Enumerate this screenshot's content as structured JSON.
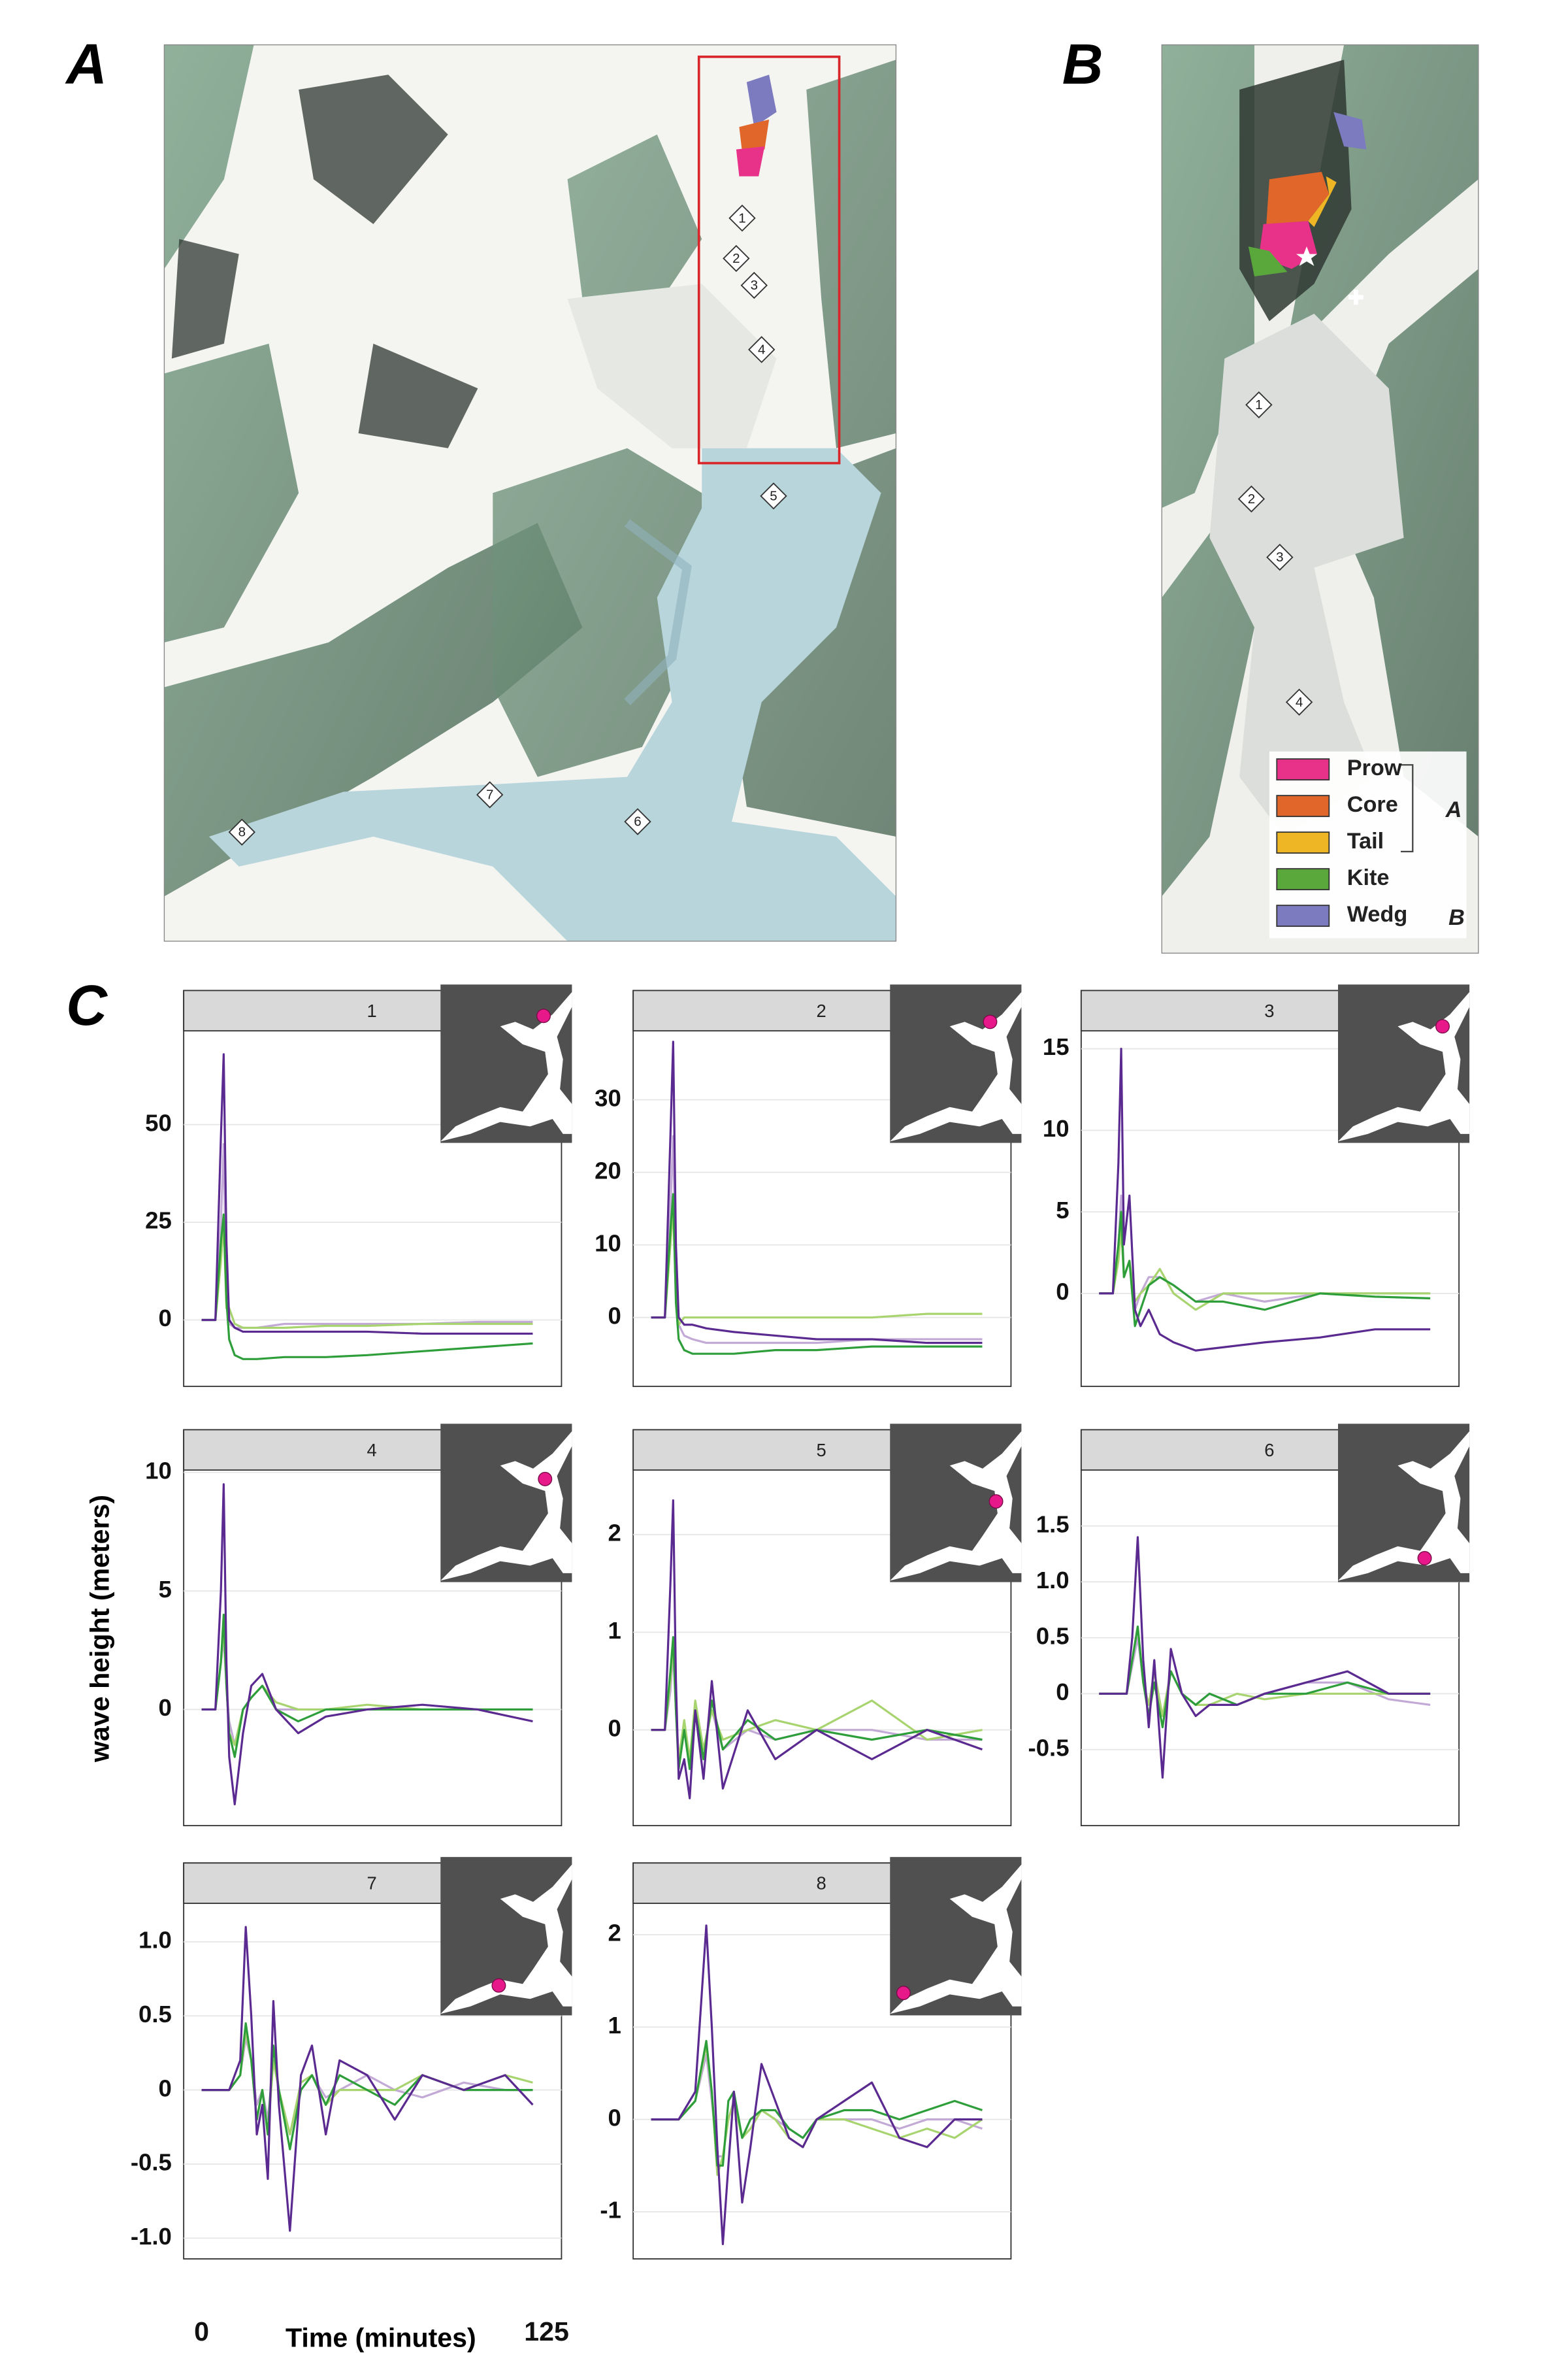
{
  "map_a": {
    "label": "A",
    "stations": [
      "1",
      "2",
      "3",
      "4",
      "5",
      "6",
      "7",
      "8"
    ]
  },
  "map_b": {
    "label": "B",
    "stations": [
      "1",
      "2",
      "3",
      "4"
    ],
    "legend": [
      {
        "name": "Prow",
        "color": "#e8328a"
      },
      {
        "name": "Core",
        "color": "#e0662a"
      },
      {
        "name": "Tail",
        "color": "#eeb524"
      },
      {
        "name": "Kite",
        "color": "#5aa83c"
      },
      {
        "name": "Wedg",
        "color": "#7d7bbf"
      }
    ],
    "legend_groups": [
      "A",
      "B"
    ]
  },
  "panel_c": {
    "label": "C",
    "xlabel": "Time (minutes)",
    "ylabel": "wave height (meters)",
    "xticks": [
      0,
      125
    ]
  },
  "chart_data": [
    {
      "type": "line",
      "title": "1",
      "xlim": [
        0,
        125
      ],
      "ylim": [
        -17,
        74
      ],
      "yticks": [
        0,
        25,
        50
      ],
      "grid": true,
      "x": [
        0,
        5,
        7,
        8,
        9,
        10,
        12,
        15,
        20,
        30,
        45,
        60,
        80,
        100,
        120
      ],
      "series": [
        {
          "color": "#c2a9d6",
          "values": [
            0,
            0,
            25,
            45,
            4,
            -1,
            -2,
            -2,
            -2,
            -1,
            -1,
            -1,
            -1,
            -0.5,
            -0.5
          ]
        },
        {
          "color": "#a8d46f",
          "values": [
            0,
            0,
            15,
            25,
            3,
            3,
            -1,
            -2,
            -2,
            -2,
            -1.5,
            -1.5,
            -1,
            -1,
            -1
          ]
        },
        {
          "color": "#2e9e3a",
          "values": [
            0,
            0,
            20,
            27,
            5,
            -5,
            -9,
            -10,
            -10,
            -9.5,
            -9.5,
            -9,
            -8,
            -7,
            -6
          ]
        },
        {
          "color": "#5b2a91",
          "values": [
            0,
            0,
            47,
            68,
            20,
            0,
            -2,
            -3,
            -3,
            -3,
            -3,
            -3,
            -3.5,
            -3.5,
            -3.5
          ]
        }
      ]
    },
    {
      "type": "line",
      "title": "2",
      "xlim": [
        0,
        125
      ],
      "ylim": [
        -9.5,
        39.5
      ],
      "yticks": [
        0,
        10,
        20,
        30
      ],
      "grid": true,
      "x": [
        0,
        5,
        7,
        8,
        9,
        10,
        12,
        15,
        20,
        30,
        45,
        60,
        80,
        100,
        120
      ],
      "series": [
        {
          "color": "#c2a9d6",
          "values": [
            0,
            0,
            15,
            25,
            5,
            -1,
            -2.5,
            -3,
            -3.5,
            -3.5,
            -3.5,
            -3.5,
            -3,
            -3,
            -3
          ]
        },
        {
          "color": "#a8d46f",
          "values": [
            0,
            0,
            10,
            15,
            3,
            -1,
            0,
            0,
            0,
            0,
            0,
            0,
            0,
            0.5,
            0.5
          ]
        },
        {
          "color": "#2e9e3a",
          "values": [
            0,
            0,
            12,
            17,
            2,
            -3,
            -4.5,
            -5,
            -5,
            -5,
            -4.5,
            -4.5,
            -4,
            -4,
            -4
          ]
        },
        {
          "color": "#5b2a91",
          "values": [
            0,
            0,
            25,
            38,
            10,
            0,
            -1,
            -1,
            -1.5,
            -2,
            -2.5,
            -3,
            -3,
            -3.5,
            -3.5
          ]
        }
      ]
    },
    {
      "type": "line",
      "title": "3",
      "xlim": [
        0,
        125
      ],
      "ylim": [
        -5.7,
        16.1
      ],
      "yticks": [
        0,
        5,
        10,
        15
      ],
      "grid": true,
      "x": [
        0,
        5,
        7,
        8,
        9,
        11,
        13,
        15,
        18,
        22,
        27,
        35,
        45,
        60,
        80,
        100,
        120
      ],
      "series": [
        {
          "color": "#c2a9d6",
          "values": [
            0,
            0,
            3,
            6,
            1,
            2,
            -1,
            0,
            1,
            1,
            0.5,
            -0.5,
            0,
            -0.5,
            0,
            0,
            0
          ]
        },
        {
          "color": "#a8d46f",
          "values": [
            0,
            0,
            2,
            4,
            1,
            2,
            -0.5,
            0,
            0.5,
            1.5,
            0,
            -1,
            0,
            0,
            0,
            0,
            0
          ]
        },
        {
          "color": "#2e9e3a",
          "values": [
            0,
            0,
            3,
            5,
            1,
            2,
            -2,
            -1,
            0.5,
            1,
            0.5,
            -0.5,
            -0.5,
            -1,
            0,
            -0.2,
            -0.3
          ]
        },
        {
          "color": "#5b2a91",
          "values": [
            0,
            0,
            8,
            15,
            3,
            6,
            -1,
            -2,
            -1,
            -2.5,
            -3,
            -3.5,
            -3.3,
            -3,
            -2.7,
            -2.2,
            -2.2
          ]
        }
      ]
    },
    {
      "type": "line",
      "title": "4",
      "xlim": [
        0,
        125
      ],
      "ylim": [
        -4.9,
        10.1
      ],
      "yticks": [
        0,
        5,
        10
      ],
      "grid": true,
      "x": [
        0,
        5,
        7,
        8,
        9,
        10,
        12,
        15,
        18,
        22,
        27,
        35,
        45,
        60,
        80,
        100,
        120
      ],
      "series": [
        {
          "color": "#c2a9d6",
          "values": [
            0,
            0,
            2,
            3,
            1,
            -0.5,
            -1.5,
            0,
            0.5,
            1,
            0,
            0,
            0,
            0,
            0,
            0,
            0
          ]
        },
        {
          "color": "#a8d46f",
          "values": [
            0,
            0,
            2,
            3.5,
            1,
            -1,
            -1.5,
            0,
            0.5,
            1,
            0.3,
            0,
            0,
            0.2,
            0,
            0,
            0
          ]
        },
        {
          "color": "#2e9e3a",
          "values": [
            0,
            0,
            2,
            4,
            1,
            -1,
            -2,
            0,
            0.5,
            1,
            0,
            -0.5,
            0,
            0,
            0,
            0,
            0
          ]
        },
        {
          "color": "#5b2a91",
          "values": [
            0,
            0,
            5,
            9.5,
            2,
            -2,
            -4,
            -1,
            1,
            1.5,
            0,
            -1,
            -0.3,
            0,
            0.2,
            0,
            -0.5
          ]
        }
      ]
    },
    {
      "type": "line",
      "title": "5",
      "xlim": [
        0,
        125
      ],
      "ylim": [
        -0.98,
        2.66
      ],
      "yticks": [
        0,
        1,
        2
      ],
      "grid": true,
      "x": [
        0,
        5,
        7,
        8,
        9,
        10,
        12,
        14,
        16,
        19,
        22,
        26,
        35,
        45,
        60,
        80,
        100,
        120
      ],
      "series": [
        {
          "color": "#c2a9d6",
          "values": [
            0,
            0,
            0.4,
            0.8,
            0.2,
            -0.3,
            0,
            -0.3,
            0.2,
            -0.2,
            0.2,
            -0.2,
            0,
            -0.1,
            0,
            0,
            -0.1,
            -0.1
          ]
        },
        {
          "color": "#a8d46f",
          "values": [
            0,
            0,
            0.5,
            0.9,
            0.2,
            -0.3,
            0.1,
            -0.3,
            0.3,
            -0.2,
            0.2,
            -0.1,
            0,
            0.1,
            0,
            0.3,
            -0.1,
            0
          ]
        },
        {
          "color": "#2e9e3a",
          "values": [
            0,
            0,
            0.6,
            0.95,
            0.2,
            -0.4,
            0,
            -0.4,
            0.2,
            -0.3,
            0.3,
            -0.2,
            0.1,
            -0.1,
            0,
            -0.1,
            0,
            -0.1
          ]
        },
        {
          "color": "#5b2a91",
          "values": [
            0,
            0,
            1.5,
            2.35,
            0.5,
            -0.5,
            -0.3,
            -0.7,
            0.2,
            -0.5,
            0.5,
            -0.6,
            0.2,
            -0.3,
            0,
            -0.3,
            0,
            -0.2
          ]
        }
      ]
    },
    {
      "type": "line",
      "title": "6",
      "xlim": [
        0,
        125
      ],
      "ylim": [
        -1.18,
        2.0
      ],
      "yticks": [
        -0.5,
        0,
        0.5,
        {
          "value": 1,
          "label": "1.0"
        },
        1.5
      ],
      "grid": true,
      "x": [
        0,
        10,
        12,
        14,
        16,
        18,
        20,
        23,
        26,
        30,
        35,
        40,
        50,
        60,
        75,
        90,
        105,
        120
      ],
      "series": [
        {
          "color": "#c2a9d6",
          "values": [
            0,
            0,
            0.25,
            0.5,
            0.1,
            -0.1,
            0.1,
            -0.2,
            0.2,
            0,
            -0.1,
            0,
            -0.1,
            0,
            0.1,
            0.1,
            -0.05,
            -0.1
          ]
        },
        {
          "color": "#a8d46f",
          "values": [
            0,
            0,
            0.3,
            0.6,
            0.1,
            -0.1,
            0.2,
            -0.2,
            0.2,
            0,
            -0.1,
            -0.1,
            0,
            -0.05,
            0,
            0,
            0,
            0
          ]
        },
        {
          "color": "#2e9e3a",
          "values": [
            0,
            0,
            0.3,
            0.6,
            0.1,
            -0.2,
            0.1,
            -0.3,
            0.2,
            0,
            -0.1,
            0,
            -0.1,
            0,
            0,
            0.1,
            0,
            0
          ]
        },
        {
          "color": "#5b2a91",
          "values": [
            0,
            0,
            0.5,
            1.4,
            0.3,
            -0.3,
            0.3,
            -0.75,
            0.4,
            0,
            -0.2,
            -0.1,
            -0.1,
            0,
            0.1,
            0.2,
            0,
            0
          ]
        }
      ]
    },
    {
      "type": "line",
      "title": "7",
      "xlim": [
        0,
        125
      ],
      "ylim": [
        -1.14,
        1.26
      ],
      "yticks": [
        {
          "value": -1,
          "label": "-1.0"
        },
        -0.5,
        0,
        0.5,
        {
          "value": 1,
          "label": "1.0"
        }
      ],
      "grid": true,
      "x": [
        0,
        10,
        14,
        16,
        18,
        20,
        22,
        24,
        26,
        28,
        32,
        36,
        40,
        45,
        50,
        60,
        70,
        80,
        95,
        110,
        120
      ],
      "series": [
        {
          "color": "#c2a9d6",
          "values": [
            0,
            0,
            0.1,
            0.35,
            0.2,
            -0.1,
            0,
            -0.2,
            0.2,
            0,
            -0.3,
            0,
            0.1,
            -0.05,
            0,
            0.1,
            0,
            -0.05,
            0.05,
            0,
            0
          ]
        },
        {
          "color": "#a8d46f",
          "values": [
            0,
            0,
            0.1,
            0.4,
            0.2,
            -0.2,
            0,
            -0.3,
            0.2,
            0,
            -0.3,
            0.05,
            0.1,
            -0.1,
            0,
            0,
            0,
            0.1,
            0,
            0.1,
            0.05
          ]
        },
        {
          "color": "#2e9e3a",
          "values": [
            0,
            0,
            0.1,
            0.45,
            0.2,
            -0.2,
            0,
            -0.3,
            0.3,
            0,
            -0.4,
            0,
            0.1,
            -0.1,
            0.1,
            0,
            -0.1,
            0.1,
            0,
            0,
            0
          ]
        },
        {
          "color": "#5b2a91",
          "values": [
            0,
            0,
            0.2,
            1.1,
            0.5,
            -0.3,
            -0.1,
            -0.6,
            0.6,
            -0.1,
            -0.95,
            0.1,
            0.3,
            -0.3,
            0.2,
            0.1,
            -0.2,
            0.1,
            0,
            0.1,
            -0.1
          ]
        }
      ]
    },
    {
      "type": "line",
      "title": "8",
      "xlim": [
        0,
        125
      ],
      "ylim": [
        -1.51,
        2.34
      ],
      "yticks": [
        -1,
        0,
        1,
        2
      ],
      "grid": true,
      "x": [
        0,
        10,
        16,
        20,
        22,
        24,
        26,
        28,
        30,
        33,
        36,
        40,
        45,
        50,
        55,
        60,
        70,
        80,
        90,
        100,
        110,
        120
      ],
      "series": [
        {
          "color": "#c2a9d6",
          "values": [
            0,
            0,
            0.2,
            0.7,
            0.2,
            -0.4,
            -0.4,
            0,
            0.2,
            -0.2,
            0,
            0.1,
            0,
            -0.1,
            -0.2,
            0,
            0,
            0,
            -0.1,
            0,
            0,
            -0.1
          ]
        },
        {
          "color": "#a8d46f",
          "values": [
            0,
            0,
            0.2,
            0.8,
            0.3,
            -0.6,
            -0.4,
            0,
            0.2,
            -0.2,
            -0.1,
            0.1,
            0,
            -0.2,
            -0.3,
            0,
            0,
            -0.1,
            -0.2,
            -0.1,
            -0.2,
            0
          ]
        },
        {
          "color": "#2e9e3a",
          "values": [
            0,
            0,
            0.2,
            0.85,
            0.3,
            -0.5,
            -0.5,
            0.2,
            0.3,
            -0.2,
            0,
            0.1,
            0.1,
            -0.1,
            -0.2,
            0,
            0.1,
            0.1,
            0,
            0.1,
            0.2,
            0.1
          ]
        },
        {
          "color": "#5b2a91",
          "values": [
            0,
            0,
            0.3,
            2.1,
            1,
            -0.3,
            -1.35,
            -0.5,
            0.3,
            -0.9,
            -0.3,
            0.6,
            0.2,
            -0.2,
            -0.3,
            0,
            0.2,
            0.4,
            -0.2,
            -0.3,
            0,
            0
          ]
        }
      ]
    }
  ]
}
